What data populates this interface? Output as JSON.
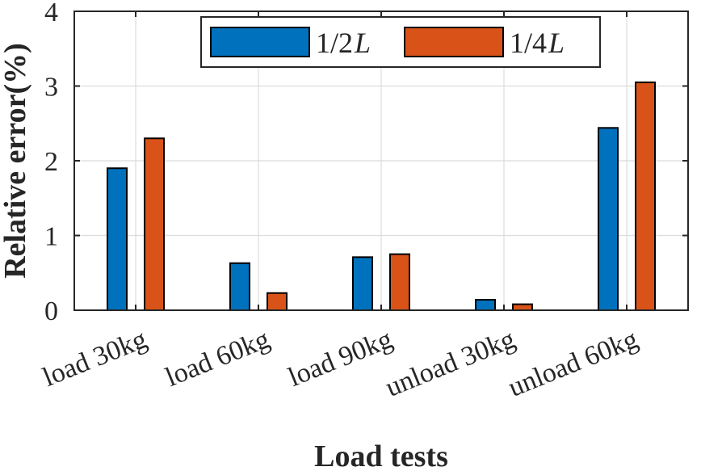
{
  "chart_data": {
    "type": "bar",
    "categories": [
      "load 30kg",
      "load 60kg",
      "load 90kg",
      "unload 30kg",
      "unload 60kg"
    ],
    "series": [
      {
        "name": "1/2L",
        "name_prefix": "1/2",
        "name_italic": "L",
        "color": "#0072BD",
        "values": [
          1.9,
          0.63,
          0.71,
          0.14,
          2.44
        ]
      },
      {
        "name": "1/4L",
        "name_prefix": "1/4",
        "name_italic": "L",
        "color": "#D95319",
        "values": [
          2.3,
          0.23,
          0.75,
          0.08,
          3.05
        ]
      }
    ],
    "xlabel": "Load tests",
    "ylabel": "Relative error(%)",
    "ylim": [
      0,
      4
    ],
    "yticks": [
      "0",
      "1",
      "2",
      "3",
      "4"
    ],
    "grid": true,
    "legend_position": "top-center"
  }
}
